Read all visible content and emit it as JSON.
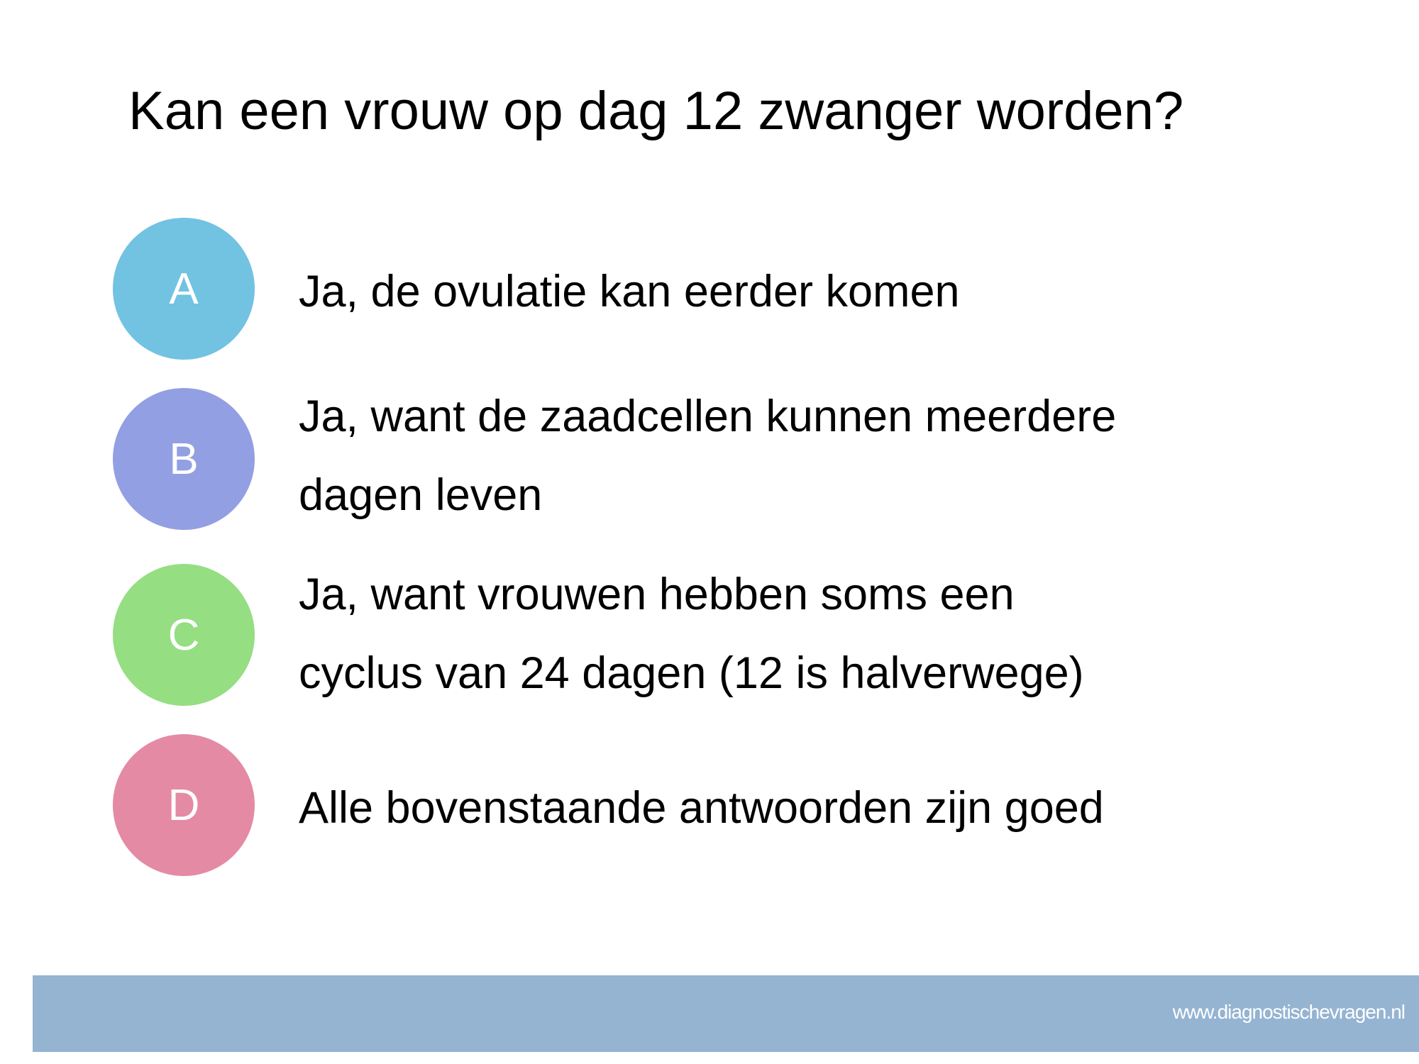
{
  "title": "Kan een vrouw op dag 12 zwanger worden?",
  "options": [
    {
      "letter": "A",
      "color": "#72c2e2",
      "lines": [
        "Ja, de ovulatie kan eerder komen"
      ]
    },
    {
      "letter": "B",
      "color": "#939fe3",
      "lines": [
        "Ja, want de zaadcellen kunnen meerdere",
        "dagen leven"
      ]
    },
    {
      "letter": "C",
      "color": "#95de82",
      "lines": [
        "Ja, want vrouwen hebben soms een",
        "cyclus van 24 dagen (12 is halverwege)"
      ]
    },
    {
      "letter": "D",
      "color": "#e48aa5",
      "lines": [
        "Alle bovenstaande antwoorden zijn goed"
      ]
    }
  ],
  "footer": {
    "text": "www.diagnostischevragen.nl",
    "color": "#94b4d2"
  }
}
